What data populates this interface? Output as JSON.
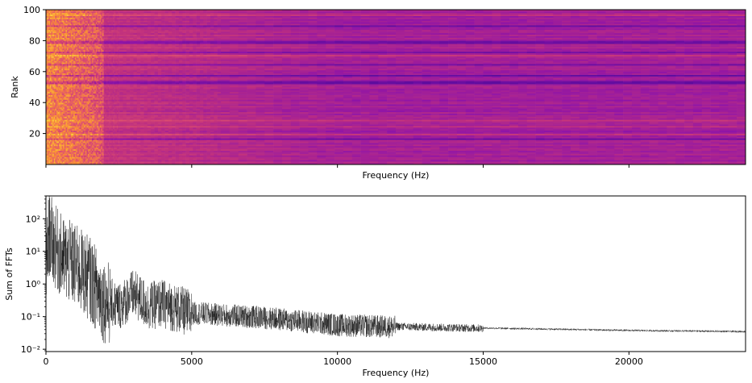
{
  "chart_data": [
    {
      "type": "heatmap",
      "title": "",
      "xlabel": "Frequency (Hz)",
      "ylabel": "Rank",
      "xlim": [
        0,
        24000
      ],
      "ylim": [
        0,
        100
      ],
      "yticks": [
        20,
        40,
        60,
        80,
        100
      ],
      "yticklabels": [
        "20",
        "40",
        "60",
        "80",
        "100"
      ],
      "xticks": [
        0,
        5000,
        10000,
        15000,
        20000
      ],
      "xticklabels_shown": false,
      "colormap": "inferno-like (purple to magenta to orange to yellow)",
      "colors": [
        "#5a0c9e",
        "#8e14a8",
        "#c0307e",
        "#e2546b",
        "#f99035",
        "#fcd23c"
      ],
      "n_rows": 100,
      "high_intensity_region_hz": [
        0,
        2000
      ],
      "description_of_values": "brightest (yellow-orange) at low frequencies below ~2000 Hz, fading to magenta/purple at higher frequencies; distinct darker purple horizontal bands at certain ranks"
    },
    {
      "type": "line",
      "title": "",
      "xlabel": "Frequency (Hz)",
      "ylabel": "Sum of FFTs",
      "yscale": "log",
      "xlim": [
        0,
        24000
      ],
      "ylim": [
        0.0085,
        500
      ],
      "xticks": [
        0,
        5000,
        10000,
        15000,
        20000
      ],
      "xticklabels": [
        "0",
        "5000",
        "10000",
        "15000",
        "20000"
      ],
      "yticklabels": [
        "10⁻²",
        "10⁻¹",
        "10⁰",
        "10¹",
        "10²"
      ],
      "ytick_values": [
        0.01,
        0.1,
        1,
        10,
        100
      ],
      "line_color": "#000000",
      "envelope": {
        "x": [
          0,
          100,
          300,
          600,
          1000,
          1500,
          2000,
          2500,
          3000,
          3500,
          4000,
          5000,
          7500,
          10000,
          12500,
          15000,
          20000,
          24000
        ],
        "y": [
          3,
          50,
          20,
          8,
          5,
          2,
          0.4,
          0.25,
          0.6,
          0.25,
          0.3,
          0.14,
          0.1,
          0.06,
          0.05,
          0.045,
          0.038,
          0.035
        ]
      },
      "grid": false
    }
  ]
}
